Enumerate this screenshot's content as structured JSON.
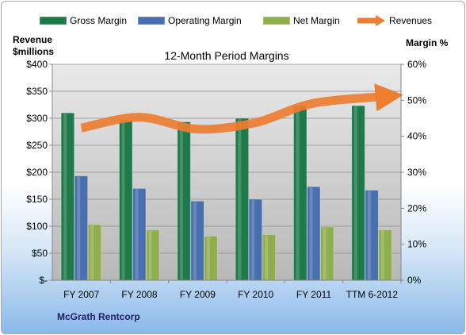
{
  "chart_data": {
    "type": "bar",
    "title": "12-Month Period Margins",
    "categories": [
      "FY 2007",
      "FY 2008",
      "FY 2009",
      "FY 2010",
      "FY 2011",
      "TTM 6-2012"
    ],
    "series": [
      {
        "name": "Gross Margin",
        "axis": "right",
        "color": "#1f7a4a",
        "values": [
          46.5,
          44.5,
          44,
          45,
          48.5,
          48.5
        ]
      },
      {
        "name": "Operating Margin",
        "axis": "right",
        "color": "#4a6fae",
        "values": [
          29,
          25.5,
          22,
          22.5,
          26,
          25
        ]
      },
      {
        "name": "Net Margin",
        "axis": "right",
        "color": "#8fae4e",
        "values": [
          15.5,
          14,
          12.3,
          12.7,
          14.8,
          14
        ]
      },
      {
        "name": "Revenues",
        "type": "line",
        "axis": "left",
        "color": "#ed7d31",
        "values": [
          282,
          302,
          280,
          292,
          328,
          338
        ]
      }
    ],
    "left_axis": {
      "label_line1": "Revenue",
      "label_line2": "$millions",
      "ylim": [
        0,
        400
      ],
      "ticks": [
        {
          "v": 0,
          "label": "$-"
        },
        {
          "v": 50,
          "label": "$50"
        },
        {
          "v": 100,
          "label": "$100"
        },
        {
          "v": 150,
          "label": "$150"
        },
        {
          "v": 200,
          "label": "$200"
        },
        {
          "v": 250,
          "label": "$250"
        },
        {
          "v": 300,
          "label": "$300"
        },
        {
          "v": 350,
          "label": "$350"
        },
        {
          "v": 400,
          "label": "$400"
        }
      ]
    },
    "right_axis": {
      "label": "Margin %",
      "ylim": [
        0,
        60
      ],
      "ticks": [
        {
          "v": 0,
          "label": "0%"
        },
        {
          "v": 10,
          "label": "10%"
        },
        {
          "v": 20,
          "label": "20%"
        },
        {
          "v": 30,
          "label": "30%"
        },
        {
          "v": 40,
          "label": "40%"
        },
        {
          "v": 50,
          "label": "50%"
        },
        {
          "v": 60,
          "label": "60%"
        }
      ]
    },
    "legend_position": "top",
    "grid": true,
    "plot_background": "#c0c0c0",
    "footer": "McGrath Rentcorp"
  }
}
